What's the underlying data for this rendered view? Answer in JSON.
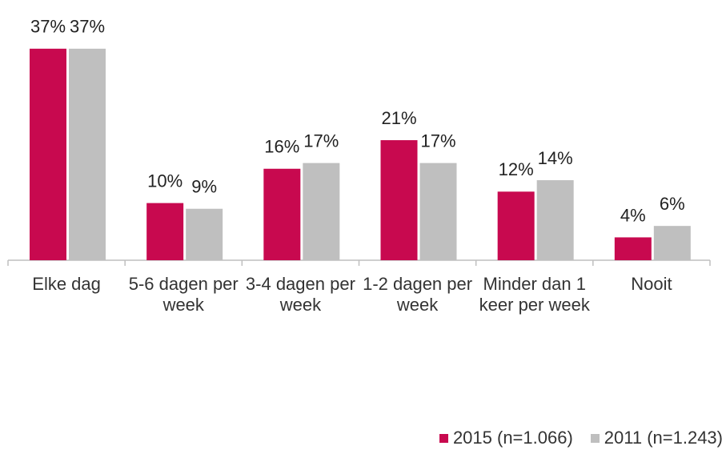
{
  "chart_data": {
    "type": "bar",
    "categories": [
      "Elke dag",
      "5-6 dagen per week",
      "3-4 dagen per week",
      "1-2 dagen per week",
      "Minder dan 1 keer per week",
      "Nooit"
    ],
    "series": [
      {
        "name": "2015 (n=1.066)",
        "color": "#c8094f",
        "values": [
          37,
          10,
          16,
          21,
          12,
          4
        ],
        "value_labels": [
          "37%",
          "10%",
          "16%",
          "21%",
          "12%",
          "4%"
        ]
      },
      {
        "name": "2011 (n=1.243)",
        "color": "#bfbfbf",
        "values": [
          37,
          9,
          17,
          17,
          14,
          6
        ],
        "value_labels": [
          "37%",
          "9%",
          "17%",
          "17%",
          "14%",
          "6%"
        ]
      }
    ],
    "legend": "bottom-right"
  }
}
